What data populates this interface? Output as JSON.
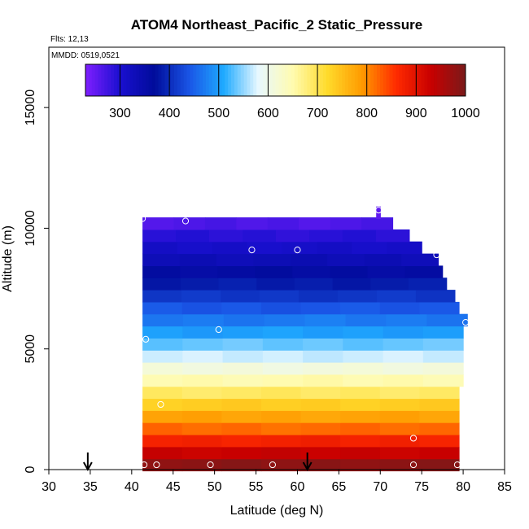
{
  "chart_data": {
    "type": "heatmap",
    "title": "ATOM4 Northeast_Pacific_2 Static_Pressure",
    "flights_label": "Flts: 12,13",
    "dates_label": "MMDD: 0519,0521",
    "xlabel": "Latitude (deg N)",
    "ylabel": "Altitude (m)",
    "xlim": [
      30,
      85
    ],
    "ylim": [
      0,
      17500
    ],
    "x_ticks": [
      30,
      35,
      40,
      45,
      50,
      55,
      60,
      65,
      70,
      75,
      80,
      85
    ],
    "y_ticks": [
      0,
      5000,
      10000,
      15000
    ],
    "colorbar": {
      "range": [
        230,
        1000
      ],
      "ticks": [
        300,
        400,
        500,
        600,
        700,
        800,
        900,
        1000
      ],
      "colors": [
        "#7f1fff",
        "#1a0fd0",
        "#000c9a",
        "#1a55e6",
        "#1eaaff",
        "#e8f8ff",
        "#fffbb0",
        "#ffdb2b",
        "#ff9a00",
        "#ff2a00",
        "#c80000",
        "#7a1a1a"
      ]
    },
    "altitude_rows": [
      {
        "alt": 200,
        "lat_max": 79.5,
        "pressure": 985
      },
      {
        "alt": 700,
        "lat_max": 79.5,
        "pressure": 930
      },
      {
        "alt": 1200,
        "lat_max": 79.5,
        "pressure": 875
      },
      {
        "alt": 1700,
        "lat_max": 79.5,
        "pressure": 820
      },
      {
        "alt": 2200,
        "lat_max": 79.5,
        "pressure": 780
      },
      {
        "alt": 2700,
        "lat_max": 79.5,
        "pressure": 735
      },
      {
        "alt": 3200,
        "lat_max": 79.5,
        "pressure": 690
      },
      {
        "alt": 3700,
        "lat_max": 80,
        "pressure": 650
      },
      {
        "alt": 4200,
        "lat_max": 80,
        "pressure": 610
      },
      {
        "alt": 4700,
        "lat_max": 80,
        "pressure": 570
      },
      {
        "alt": 5200,
        "lat_max": 80,
        "pressure": 535
      },
      {
        "alt": 5700,
        "lat_max": 80,
        "pressure": 500
      },
      {
        "alt": 6200,
        "lat_max": 80.5,
        "pressure": 470
      },
      {
        "alt": 6700,
        "lat_max": 79.5,
        "pressure": 440
      },
      {
        "alt": 7200,
        "lat_max": 79,
        "pressure": 410
      },
      {
        "alt": 7700,
        "lat_max": 78,
        "pressure": 385
      },
      {
        "alt": 8200,
        "lat_max": 77.5,
        "pressure": 360
      },
      {
        "alt": 8700,
        "lat_max": 77,
        "pressure": 335
      },
      {
        "alt": 9200,
        "lat_max": 75,
        "pressure": 310
      },
      {
        "alt": 9700,
        "lat_max": 73.5,
        "pressure": 290
      },
      {
        "alt": 10200,
        "lat_max": 71.5,
        "pressure": 265
      },
      {
        "alt": 10650,
        "lat_min": 69.5,
        "lat_max": 70,
        "pressure": 250
      }
    ],
    "grid_lat_min": 41.3,
    "observations": [
      {
        "lat": 41.5,
        "alt": 200
      },
      {
        "lat": 43,
        "alt": 200
      },
      {
        "lat": 49.5,
        "alt": 200
      },
      {
        "lat": 57,
        "alt": 200
      },
      {
        "lat": 74,
        "alt": 200
      },
      {
        "lat": 79.3,
        "alt": 200
      },
      {
        "lat": 74,
        "alt": 1300
      },
      {
        "lat": 43.5,
        "alt": 2700
      },
      {
        "lat": 41.7,
        "alt": 5400
      },
      {
        "lat": 50.5,
        "alt": 5800
      },
      {
        "lat": 80.3,
        "alt": 6100
      },
      {
        "lat": 54.5,
        "alt": 9100
      },
      {
        "lat": 60,
        "alt": 9100
      },
      {
        "lat": 76.8,
        "alt": 8900
      },
      {
        "lat": 46.5,
        "alt": 10300
      },
      {
        "lat": 41.3,
        "alt": 10400
      },
      {
        "lat": 69.8,
        "alt": 10750
      }
    ],
    "arrows": [
      {
        "lat": 34.7
      },
      {
        "lat": 61.2
      }
    ]
  }
}
